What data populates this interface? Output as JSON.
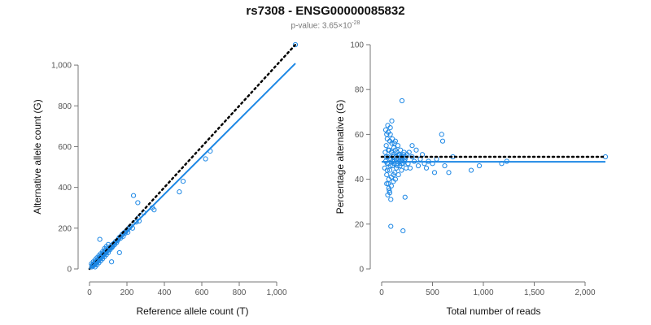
{
  "header": {
    "title": "rs7308 - ENSG00000085832",
    "pvalue_prefix": "p-value: ",
    "pvalue_mantissa": "3.65×10",
    "pvalue_exponent": "-28"
  },
  "chart_data": [
    {
      "type": "scatter",
      "xlabel": "Reference allele count (T)",
      "ylabel": "Alternative allele count (G)",
      "xlim": [
        0,
        1100
      ],
      "ylim": [
        0,
        1100
      ],
      "xticks": [
        0,
        200,
        400,
        600,
        800,
        1000
      ],
      "xtick_labels": [
        "0",
        "200",
        "400",
        "600",
        "800",
        "1,000"
      ],
      "yticks": [
        0,
        200,
        400,
        600,
        800,
        1000
      ],
      "ytick_labels": [
        "0",
        "200",
        "400",
        "600",
        "800",
        "1,000"
      ],
      "grid": false,
      "point_color": "#1e88e5",
      "points": [
        [
          12,
          10
        ],
        [
          15,
          18
        ],
        [
          18,
          14
        ],
        [
          20,
          22
        ],
        [
          22,
          16
        ],
        [
          25,
          28
        ],
        [
          28,
          20
        ],
        [
          30,
          32
        ],
        [
          32,
          25
        ],
        [
          35,
          30
        ],
        [
          38,
          40
        ],
        [
          40,
          33
        ],
        [
          42,
          45
        ],
        [
          45,
          38
        ],
        [
          48,
          42
        ],
        [
          50,
          55
        ],
        [
          52,
          47
        ],
        [
          55,
          50
        ],
        [
          58,
          62
        ],
        [
          60,
          52
        ],
        [
          62,
          58
        ],
        [
          65,
          60
        ],
        [
          68,
          72
        ],
        [
          70,
          64
        ],
        [
          72,
          68
        ],
        [
          75,
          80
        ],
        [
          78,
          70
        ],
        [
          80,
          75
        ],
        [
          82,
          90
        ],
        [
          85,
          78
        ],
        [
          88,
          82
        ],
        [
          90,
          95
        ],
        [
          92,
          86
        ],
        [
          95,
          88
        ],
        [
          98,
          100
        ],
        [
          100,
          92
        ],
        [
          105,
          98
        ],
        [
          110,
          108
        ],
        [
          115,
          104
        ],
        [
          120,
          118
        ],
        [
          125,
          112
        ],
        [
          130,
          125
        ],
        [
          135,
          120
        ],
        [
          140,
          135
        ],
        [
          145,
          130
        ],
        [
          150,
          140
        ],
        [
          155,
          148
        ],
        [
          160,
          155
        ],
        [
          165,
          150
        ],
        [
          170,
          162
        ],
        [
          175,
          170
        ],
        [
          180,
          160
        ],
        [
          185,
          178
        ],
        [
          190,
          175
        ],
        [
          195,
          185
        ],
        [
          200,
          190
        ],
        [
          205,
          180
        ],
        [
          210,
          200
        ],
        [
          215,
          205
        ],
        [
          220,
          210
        ],
        [
          230,
          200
        ],
        [
          250,
          230
        ],
        [
          260,
          250
        ],
        [
          55,
          145
        ],
        [
          118,
          35
        ],
        [
          160,
          80
        ],
        [
          235,
          360
        ],
        [
          258,
          325
        ],
        [
          265,
          235
        ],
        [
          290,
          275
        ],
        [
          335,
          300
        ],
        [
          345,
          290
        ],
        [
          480,
          378
        ],
        [
          500,
          430
        ],
        [
          620,
          540
        ],
        [
          645,
          578
        ],
        [
          1100,
          1100
        ],
        [
          30,
          10
        ],
        [
          40,
          20
        ],
        [
          50,
          30
        ],
        [
          60,
          40
        ],
        [
          70,
          50
        ],
        [
          80,
          60
        ],
        [
          90,
          70
        ],
        [
          100,
          80
        ],
        [
          110,
          95
        ],
        [
          120,
          105
        ],
        [
          10,
          25
        ],
        [
          20,
          35
        ],
        [
          30,
          45
        ],
        [
          40,
          55
        ],
        [
          50,
          65
        ],
        [
          60,
          75
        ],
        [
          70,
          85
        ],
        [
          80,
          100
        ],
        [
          90,
          110
        ],
        [
          100,
          120
        ]
      ],
      "lines": [
        {
          "name": "",
          "style": "dotted",
          "color": "#000000",
          "x": [
            0,
            1100
          ],
          "y": [
            0,
            1100
          ]
        },
        {
          "name": "",
          "style": "solid",
          "color": "#1e88e5",
          "x": [
            0,
            1100
          ],
          "y": [
            0,
            1008
          ]
        }
      ]
    },
    {
      "type": "scatter",
      "xlabel": "Total number of reads",
      "ylabel": "Percentage alternative (G)",
      "xlim": [
        0,
        2200
      ],
      "ylim": [
        0,
        100
      ],
      "xticks": [
        0,
        500,
        1000,
        1500,
        2000
      ],
      "xtick_labels": [
        "0",
        "500",
        "1,000",
        "1,500",
        "2,000"
      ],
      "yticks": [
        0,
        20,
        40,
        60,
        80,
        100
      ],
      "ytick_labels": [
        "0",
        "20",
        "40",
        "60",
        "80",
        "100"
      ],
      "grid": false,
      "point_color": "#1e88e5",
      "points": [
        [
          30,
          45
        ],
        [
          35,
          52
        ],
        [
          40,
          48
        ],
        [
          45,
          55
        ],
        [
          50,
          42
        ],
        [
          55,
          58
        ],
        [
          60,
          50
        ],
        [
          65,
          38
        ],
        [
          70,
          47
        ],
        [
          75,
          53
        ],
        [
          80,
          44
        ],
        [
          85,
          60
        ],
        [
          90,
          49
        ],
        [
          95,
          41
        ],
        [
          100,
          56
        ],
        [
          105,
          46
        ],
        [
          110,
          51
        ],
        [
          115,
          39
        ],
        [
          120,
          54
        ],
        [
          125,
          48
        ],
        [
          130,
          43
        ],
        [
          135,
          57
        ],
        [
          140,
          50
        ],
        [
          145,
          45
        ],
        [
          150,
          52
        ],
        [
          155,
          47
        ],
        [
          160,
          55
        ],
        [
          165,
          42
        ],
        [
          170,
          49
        ],
        [
          175,
          51
        ],
        [
          180,
          46
        ],
        [
          185,
          53
        ],
        [
          190,
          48
        ],
        [
          195,
          44
        ],
        [
          200,
          50
        ],
        [
          210,
          47
        ],
        [
          220,
          52
        ],
        [
          230,
          49
        ],
        [
          240,
          45
        ],
        [
          250,
          51
        ],
        [
          40,
          62
        ],
        [
          50,
          60
        ],
        [
          60,
          64
        ],
        [
          70,
          36
        ],
        [
          80,
          34
        ],
        [
          90,
          31
        ],
        [
          100,
          66
        ],
        [
          60,
          33
        ],
        [
          70,
          40
        ],
        [
          80,
          57
        ],
        [
          50,
          38
        ],
        [
          55,
          44
        ],
        [
          65,
          61
        ],
        [
          75,
          35
        ],
        [
          85,
          63
        ],
        [
          95,
          37
        ],
        [
          105,
          58
        ],
        [
          115,
          42
        ],
        [
          125,
          56
        ],
        [
          135,
          40
        ],
        [
          45,
          50
        ],
        [
          55,
          47
        ],
        [
          65,
          53
        ],
        [
          75,
          49
        ],
        [
          85,
          46
        ],
        [
          95,
          52
        ],
        [
          105,
          48
        ],
        [
          115,
          50
        ],
        [
          125,
          47
        ],
        [
          135,
          53
        ],
        [
          145,
          49
        ],
        [
          155,
          46
        ],
        [
          165,
          51
        ],
        [
          175,
          48
        ],
        [
          185,
          50
        ],
        [
          195,
          47
        ],
        [
          205,
          49
        ],
        [
          215,
          51
        ],
        [
          225,
          48
        ],
        [
          235,
          50
        ],
        [
          260,
          47
        ],
        [
          270,
          52
        ],
        [
          280,
          45
        ],
        [
          300,
          50
        ],
        [
          320,
          48
        ],
        [
          340,
          53
        ],
        [
          360,
          46
        ],
        [
          380,
          49
        ],
        [
          400,
          51
        ],
        [
          420,
          47
        ],
        [
          90,
          19
        ],
        [
          200,
          75
        ],
        [
          210,
          17
        ],
        [
          230,
          32
        ],
        [
          300,
          55
        ],
        [
          440,
          45
        ],
        [
          460,
          48
        ],
        [
          500,
          47
        ],
        [
          520,
          43
        ],
        [
          540,
          49
        ],
        [
          590,
          60
        ],
        [
          600,
          57
        ],
        [
          620,
          46
        ],
        [
          660,
          43
        ],
        [
          700,
          50
        ],
        [
          880,
          44
        ],
        [
          960,
          46
        ],
        [
          1180,
          47
        ],
        [
          1230,
          48
        ],
        [
          2200,
          50
        ]
      ],
      "lines": [
        {
          "name": "",
          "style": "dotted",
          "color": "#000000",
          "x": [
            0,
            2200
          ],
          "y": [
            50,
            50
          ]
        },
        {
          "name": "",
          "style": "solid",
          "color": "#1e88e5",
          "x": [
            0,
            2200
          ],
          "y": [
            47.8,
            47.8
          ]
        }
      ]
    }
  ]
}
